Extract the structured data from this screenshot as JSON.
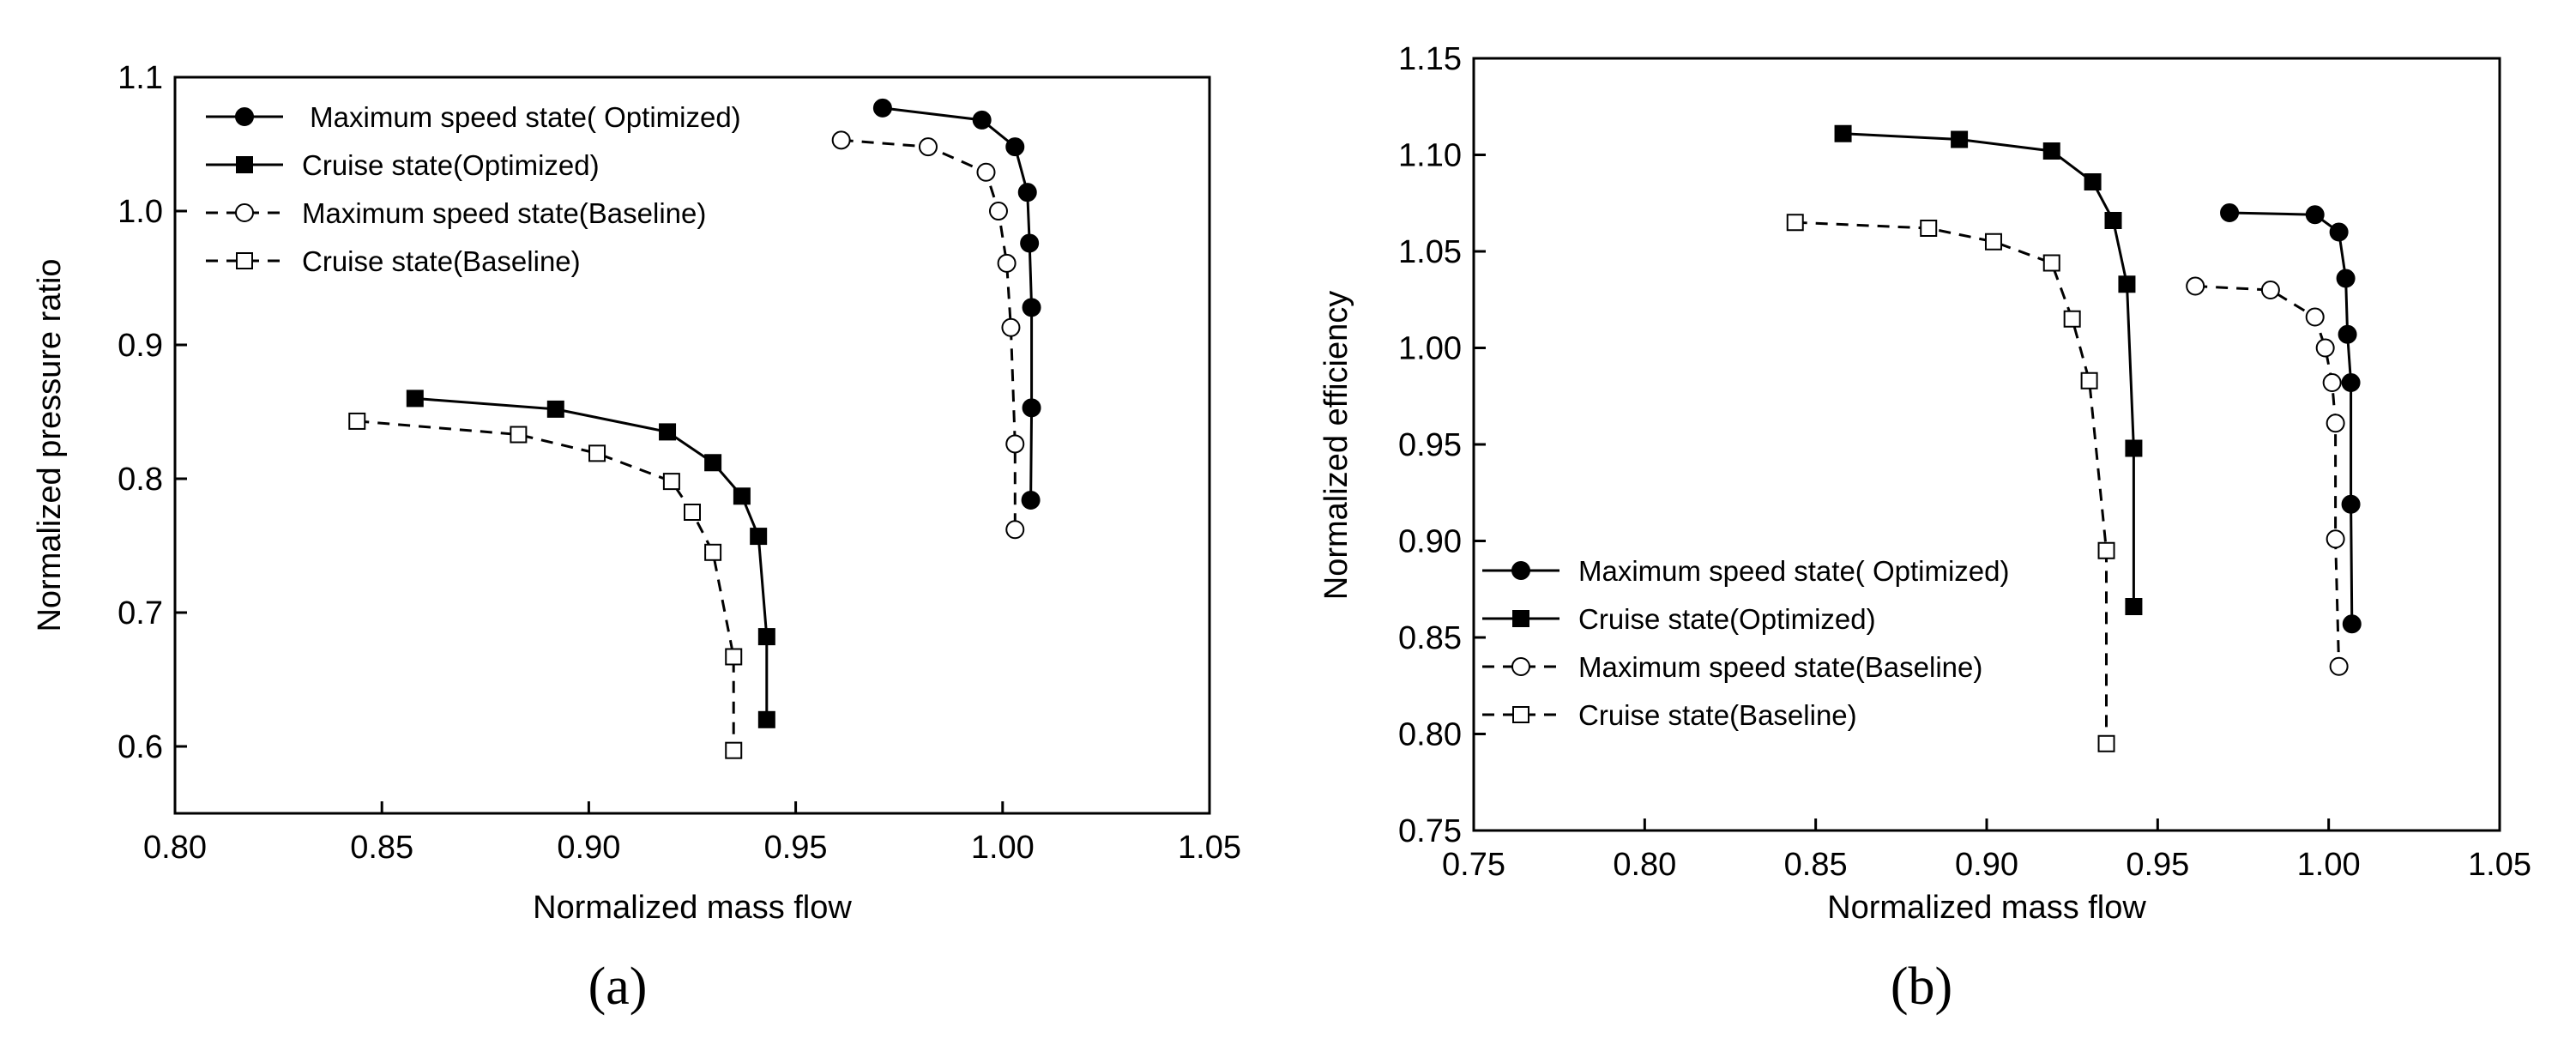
{
  "chart_data": [
    {
      "type": "line",
      "panel_label": "(a)",
      "title": "",
      "xlabel": "Normalized mass flow",
      "ylabel": "Normalized pressure ratio",
      "xlim": [
        0.8,
        1.05
      ],
      "ylim": [
        0.55,
        1.1
      ],
      "xticks": [
        "0.80",
        "0.85",
        "0.90",
        "0.95",
        "1.00",
        "1.05"
      ],
      "yticks": [
        "0.6",
        "0.7",
        "0.8",
        "0.9",
        "1.0",
        "1.1"
      ],
      "legend_position": "top-left",
      "series": [
        {
          "name": " Maximum speed state( Optimized)",
          "style": "solid",
          "marker": "filled-circle",
          "x": [
            0.971,
            0.995,
            1.003,
            1.006,
            1.0065,
            1.007,
            1.007,
            1.0068
          ],
          "y": [
            1.077,
            1.068,
            1.048,
            1.014,
            0.976,
            0.928,
            0.853,
            0.784
          ]
        },
        {
          "name": "Cruise state(Optimized)",
          "style": "solid",
          "marker": "filled-square",
          "x": [
            0.858,
            0.892,
            0.919,
            0.93,
            0.937,
            0.941,
            0.943,
            0.943
          ],
          "y": [
            0.86,
            0.852,
            0.835,
            0.812,
            0.787,
            0.757,
            0.682,
            0.62
          ]
        },
        {
          "name": "Maximum speed state(Baseline)",
          "style": "dashed",
          "marker": "open-circle",
          "x": [
            0.961,
            0.982,
            0.996,
            0.999,
            1.001,
            1.002,
            1.003,
            1.003
          ],
          "y": [
            1.053,
            1.048,
            1.029,
            1.0,
            0.961,
            0.913,
            0.826,
            0.762
          ]
        },
        {
          "name": "Cruise state(Baseline)",
          "style": "dashed",
          "marker": "open-square",
          "x": [
            0.844,
            0.883,
            0.902,
            0.92,
            0.925,
            0.93,
            0.935,
            0.935
          ],
          "y": [
            0.843,
            0.833,
            0.819,
            0.798,
            0.775,
            0.745,
            0.667,
            0.597
          ]
        }
      ]
    },
    {
      "type": "line",
      "panel_label": "(b)",
      "title": "",
      "xlabel": "Normalized mass flow",
      "ylabel": "Normalized efficiency",
      "xlim": [
        0.75,
        1.05
      ],
      "ylim": [
        0.75,
        1.15
      ],
      "xticks": [
        "0.75",
        "0.80",
        "0.85",
        "0.90",
        "0.95",
        "1.00",
        "1.05"
      ],
      "yticks": [
        "0.75",
        "0.80",
        "0.85",
        "0.90",
        "0.95",
        "1.00",
        "1.05",
        "1.10",
        "1.15"
      ],
      "legend_position": "bottom-left",
      "series": [
        {
          "name": "Maximum speed state( Optimized)",
          "style": "solid",
          "marker": "filled-circle",
          "x": [
            0.971,
            0.996,
            1.003,
            1.005,
            1.0055,
            1.0065,
            1.0065,
            1.0068
          ],
          "y": [
            1.07,
            1.069,
            1.06,
            1.036,
            1.007,
            0.982,
            0.919,
            0.857
          ]
        },
        {
          "name": "Cruise state(Optimized)",
          "style": "solid",
          "marker": "filled-square",
          "x": [
            0.858,
            0.892,
            0.919,
            0.931,
            0.937,
            0.941,
            0.943,
            0.943
          ],
          "y": [
            1.111,
            1.108,
            1.102,
            1.086,
            1.066,
            1.033,
            0.948,
            0.866
          ]
        },
        {
          "name": "Maximum speed state(Baseline)",
          "style": "dashed",
          "marker": "open-circle",
          "x": [
            0.961,
            0.983,
            0.996,
            0.999,
            1.001,
            1.002,
            1.002,
            1.003
          ],
          "y": [
            1.032,
            1.03,
            1.016,
            1.0,
            0.982,
            0.961,
            0.901,
            0.835
          ]
        },
        {
          "name": "Cruise state(Baseline)",
          "style": "dashed",
          "marker": "open-square",
          "x": [
            0.844,
            0.883,
            0.902,
            0.919,
            0.925,
            0.93,
            0.935,
            0.935
          ],
          "y": [
            1.065,
            1.062,
            1.055,
            1.044,
            1.015,
            0.983,
            0.895,
            0.795
          ]
        }
      ]
    }
  ]
}
